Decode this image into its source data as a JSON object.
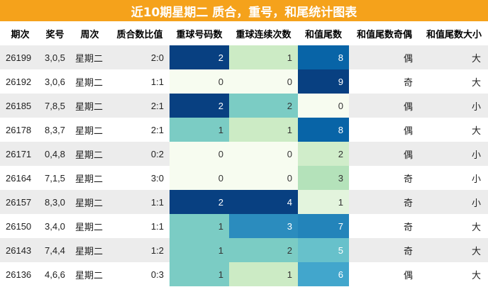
{
  "title": "近10期星期二 质合，重号，和尾统计图表",
  "headers": [
    "期次",
    "奖号",
    "周次",
    "质合数比值",
    "重球号码数",
    "重球连续次数",
    "和值尾数",
    "和值尾数奇偶",
    "和值尾数大小"
  ],
  "colors": {
    "title_bg": "#f5a21b",
    "row_odd": "#ececec",
    "row_even": "#ffffff"
  },
  "rows": [
    {
      "period": "26199",
      "prize": "3,0,5",
      "week": "星期二",
      "ratio": "2:0",
      "repeat": 2,
      "consecutive": 1,
      "tail": 8,
      "parity": "偶",
      "size": "大"
    },
    {
      "period": "26192",
      "prize": "3,0,6",
      "week": "星期二",
      "ratio": "1:1",
      "repeat": 0,
      "consecutive": 0,
      "tail": 9,
      "parity": "奇",
      "size": "大"
    },
    {
      "period": "26185",
      "prize": "7,8,5",
      "week": "星期二",
      "ratio": "2:1",
      "repeat": 2,
      "consecutive": 2,
      "tail": 0,
      "parity": "偶",
      "size": "小"
    },
    {
      "period": "26178",
      "prize": "8,3,7",
      "week": "星期二",
      "ratio": "2:1",
      "repeat": 1,
      "consecutive": 1,
      "tail": 8,
      "parity": "偶",
      "size": "大"
    },
    {
      "period": "26171",
      "prize": "0,4,8",
      "week": "星期二",
      "ratio": "0:2",
      "repeat": 0,
      "consecutive": 0,
      "tail": 2,
      "parity": "偶",
      "size": "小"
    },
    {
      "period": "26164",
      "prize": "7,1,5",
      "week": "星期二",
      "ratio": "3:0",
      "repeat": 0,
      "consecutive": 0,
      "tail": 3,
      "parity": "奇",
      "size": "小"
    },
    {
      "period": "26157",
      "prize": "8,3,0",
      "week": "星期二",
      "ratio": "1:1",
      "repeat": 2,
      "consecutive": 4,
      "tail": 1,
      "parity": "奇",
      "size": "小"
    },
    {
      "period": "26150",
      "prize": "3,4,0",
      "week": "星期二",
      "ratio": "1:1",
      "repeat": 1,
      "consecutive": 3,
      "tail": 7,
      "parity": "奇",
      "size": "大"
    },
    {
      "period": "26143",
      "prize": "7,4,4",
      "week": "星期二",
      "ratio": "1:2",
      "repeat": 1,
      "consecutive": 2,
      "tail": 5,
      "parity": "奇",
      "size": "大"
    },
    {
      "period": "26136",
      "prize": "4,6,6",
      "week": "星期二",
      "ratio": "0:3",
      "repeat": 1,
      "consecutive": 1,
      "tail": 6,
      "parity": "偶",
      "size": "大"
    }
  ]
}
